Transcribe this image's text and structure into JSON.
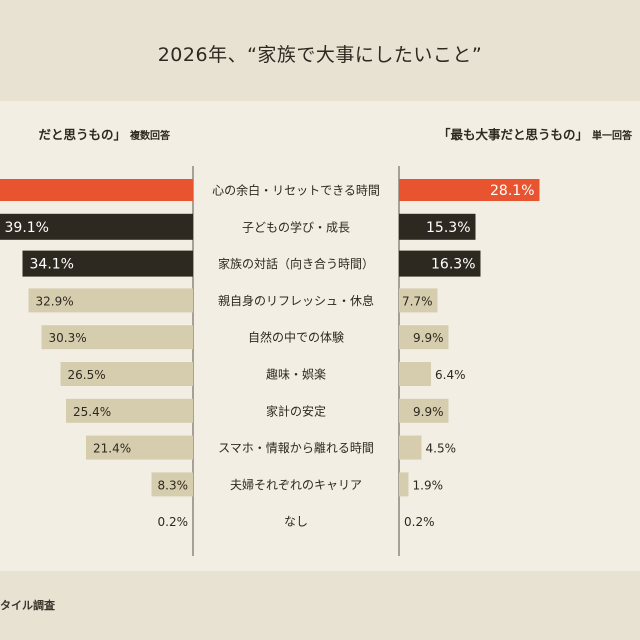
{
  "title": "2026年、“家族で大事にしたいこと”",
  "footer": "タイル調査",
  "colors": {
    "highlight": "#e8542f",
    "dark": "#2e2920",
    "light": "#d6cdaf",
    "panel": "#f2eee4",
    "background": "#e8e2d2"
  },
  "chart_data": {
    "type": "bar",
    "title": "2026年、“家族で大事にしたいこと”",
    "categories": [
      "心の余白・リセットできる時間",
      "子どもの学び・成長",
      "家族の対話（向き合う時間）",
      "親自身のリフレッシュ・休息",
      "自然の中での体験",
      "趣味・娯楽",
      "家計の安定",
      "スマホ・情報から離れる時間",
      "夫婦それぞれのキャリア",
      "なし"
    ],
    "series": [
      {
        "name": "「大事だと思うもの」",
        "name_visible": "だと思うもの」",
        "note": "複数回答",
        "values": [
          null,
          39.1,
          34.1,
          32.9,
          30.3,
          26.5,
          25.4,
          21.4,
          8.3,
          0.2
        ],
        "direction": "left"
      },
      {
        "name": "「最も大事だと思うもの」",
        "note": "単一回答",
        "values": [
          28.1,
          15.3,
          16.3,
          7.7,
          9.9,
          6.4,
          9.9,
          4.5,
          1.9,
          0.2
        ],
        "direction": "right"
      }
    ],
    "bar_styles": [
      "highlight",
      "dark",
      "dark",
      "light",
      "light",
      "light",
      "light",
      "light",
      "light",
      "light"
    ],
    "unit": "%"
  }
}
